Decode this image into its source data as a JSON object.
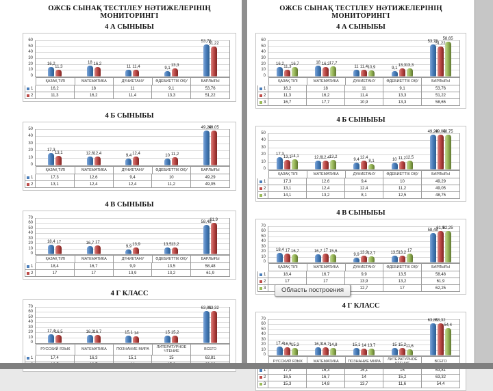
{
  "document": {
    "title": "ОЖСБ СЫНАҚ ТЕСТІЛЕУ НӘТИЖЕЛЕРІНІҢ МОНИТОРИНГІ"
  },
  "tooltip": {
    "label": "Область построения"
  },
  "colors": {
    "series_blue": {
      "main": "#4a7ebb",
      "light": "#7ea6d8",
      "dark": "#2c5d8f"
    },
    "series_red": {
      "main": "#be4b48",
      "light": "#d98582",
      "dark": "#7f2422"
    },
    "series_green": {
      "main": "#9bbb59",
      "light": "#c2d69b",
      "dark": "#5e7530"
    }
  },
  "pages": [
    {
      "doc_title": "ОЖСБ СЫНАҚ ТЕСТІЛЕУ НӘТИЖЕЛЕРІНІҢ МОНИТОРИНГІ",
      "charts": [
        0,
        1,
        2,
        3
      ]
    },
    {
      "doc_title": "ОЖСБ СЫНАҚ ТЕСТІЛЕУ НӘТИЖЕЛЕРІНІҢ МОНИТОРИНГІ",
      "charts": [
        4,
        5,
        6,
        7
      ],
      "tooltip_on_chart": 7
    }
  ],
  "chart_data": [
    {
      "type": "bar",
      "title": "4 А СЫНЫБЫ",
      "page": 1,
      "categories": [
        "ҚАЗАҚ ТІЛІ",
        "МАТЕМАТИКА",
        "ДҮНИЕТАНУ",
        "ӘДЕБИЕТТІК ОҚУ",
        "БАРЛЫҒЫ"
      ],
      "series": [
        {
          "name": "1",
          "color": "blue",
          "values": [
            16.2,
            18,
            11,
            9.1,
            53.76
          ]
        },
        {
          "name": "2",
          "color": "red",
          "values": [
            11.3,
            16.2,
            11.4,
            13.3,
            51.22
          ]
        }
      ],
      "ylim": [
        0,
        60
      ],
      "ytick": 10,
      "grid": true,
      "data_table": true
    },
    {
      "type": "bar",
      "title": "4 Б СЫНЫБЫ",
      "page": 1,
      "categories": [
        "ҚАЗАҚ ТІЛІ",
        "МАТЕМАТИКА",
        "ДҮНИЕТАНУ",
        "ӘДЕБИЕТТІК ОҚУ",
        "БАРЛЫҒЫ"
      ],
      "series": [
        {
          "name": "1",
          "color": "blue",
          "values": [
            17.3,
            12.6,
            9.4,
            10,
            49.29
          ]
        },
        {
          "name": "2",
          "color": "red",
          "values": [
            13.1,
            12.4,
            12.4,
            11.2,
            49.05
          ]
        }
      ],
      "ylim": [
        0,
        50
      ],
      "ytick": 10,
      "grid": true,
      "data_table": true
    },
    {
      "type": "bar",
      "title": "4 В СЫНЫБЫ",
      "page": 1,
      "categories": [
        "ҚАЗАҚ ТІЛІ",
        "МАТЕМАТИКА",
        "ДҮНИЕТАНУ",
        "ӘДЕБИЕТТІК ОҚУ",
        "БАРЛЫҒЫ"
      ],
      "series": [
        {
          "name": "1",
          "color": "blue",
          "values": [
            18.4,
            16.7,
            9.9,
            13.5,
            58.48
          ]
        },
        {
          "name": "2",
          "color": "red",
          "values": [
            17,
            17,
            13.9,
            13.2,
            61.9
          ]
        }
      ],
      "ylim": [
        0,
        70
      ],
      "ytick": 10,
      "grid": true,
      "data_table": true
    },
    {
      "type": "bar",
      "title": "4 Г КЛАСС",
      "page": 1,
      "categories": [
        "РУССКИЙ ЯЗЫК",
        "МАТЕМАТИКА",
        "ПОЗНАНИЕ МИРА",
        "ЛИТЕРАТУРНОЕ ЧТЕНИЕ",
        "ВСЕГО"
      ],
      "series": [
        {
          "name": "1",
          "color": "blue",
          "values": [
            17.4,
            16.3,
            15.1,
            15,
            63.81
          ]
        },
        {
          "name": "2",
          "color": "red",
          "values": [
            16.5,
            16.7,
            14,
            15.2,
            63.32
          ]
        }
      ],
      "ylim": [
        0,
        70
      ],
      "ytick": 10,
      "grid": true,
      "data_table": true
    },
    {
      "type": "bar",
      "title": "4 А СЫНЫБЫ",
      "page": 2,
      "categories": [
        "ҚАЗАҚ ТІЛІ",
        "МАТЕМАТИКА",
        "ДҮНИЕТАНУ",
        "ӘДЕБИЕТТІК ОҚУ",
        "БАРЛЫҒЫ"
      ],
      "series": [
        {
          "name": "1",
          "color": "blue",
          "values": [
            16.2,
            18,
            11,
            9.1,
            53.76
          ]
        },
        {
          "name": "2",
          "color": "red",
          "values": [
            11.3,
            16.2,
            11.4,
            13.3,
            51.22
          ]
        },
        {
          "name": "3",
          "color": "green",
          "values": [
            16.7,
            17.7,
            10.9,
            13.3,
            58.65
          ]
        }
      ],
      "ylim": [
        0,
        60
      ],
      "ytick": 10,
      "grid": true,
      "data_table": true
    },
    {
      "type": "bar",
      "title": "4 Б СЫНЫБЫ",
      "page": 2,
      "categories": [
        "ҚАЗАҚ ТІЛІ",
        "МАТЕМАТИКА",
        "ДҮНИЕТАНУ",
        "ӘДЕБИЕТТІК ОҚУ",
        "БАРЛЫҒЫ"
      ],
      "series": [
        {
          "name": "1",
          "color": "blue",
          "values": [
            17.3,
            12.6,
            9.4,
            10,
            49.29
          ]
        },
        {
          "name": "2",
          "color": "red",
          "values": [
            13.1,
            12.4,
            12.4,
            11.2,
            49.05
          ]
        },
        {
          "name": "3",
          "color": "green",
          "values": [
            14.1,
            13.2,
            8.1,
            12.5,
            48.75
          ]
        }
      ],
      "ylim": [
        0,
        50
      ],
      "ytick": 10,
      "grid": true,
      "data_table": true
    },
    {
      "type": "bar",
      "title": "4 В СЫНЫБЫ",
      "page": 2,
      "categories": [
        "ҚАЗАҚ ТІЛІ",
        "МАТЕМАТИКА",
        "ДҮНИЕТАНУ",
        "ӘДЕБИЕТТІК ОҚУ",
        "БАРЛЫҒЫ"
      ],
      "series": [
        {
          "name": "1",
          "color": "blue",
          "values": [
            18.4,
            16.7,
            9.9,
            13.5,
            58.48
          ]
        },
        {
          "name": "2",
          "color": "red",
          "values": [
            17,
            17,
            13.9,
            13.2,
            61.9
          ]
        },
        {
          "name": "3",
          "color": "green",
          "values": [
            16.7,
            15.6,
            12.7,
            17,
            62.25
          ]
        }
      ],
      "ylim": [
        0,
        70
      ],
      "ytick": 10,
      "grid": true,
      "data_table": true
    },
    {
      "type": "bar",
      "title": "4 Г КЛАСС",
      "page": 2,
      "categories": [
        "РУССКИЙ ЯЗЫК",
        "МАТЕМАТИКА",
        "ПОЗНАНИЕ МИРА",
        "ЛИТЕРАТУРНОЕ ЧТЕНИЕ",
        "ВСЕГО"
      ],
      "series": [
        {
          "name": "1",
          "color": "blue",
          "values": [
            17.4,
            16.3,
            15.1,
            15,
            63.81
          ]
        },
        {
          "name": "2",
          "color": "red",
          "values": [
            16.5,
            16.7,
            14,
            15.2,
            63.32
          ]
        },
        {
          "name": "3",
          "color": "green",
          "values": [
            15.3,
            14.8,
            13.7,
            11.6,
            54.4
          ]
        }
      ],
      "ylim": [
        0,
        70
      ],
      "ytick": 10,
      "grid": true,
      "data_table": true
    }
  ]
}
